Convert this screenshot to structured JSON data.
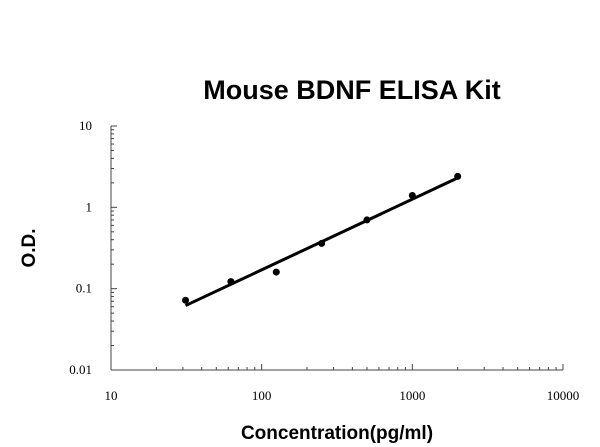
{
  "chart_data": {
    "type": "scatter",
    "title": "Mouse BDNF ELISA Kit",
    "xlabel": "Concentration(pg/ml)",
    "ylabel": "O.D.",
    "x_scale": "log",
    "y_scale": "log",
    "xlim": [
      10,
      10000
    ],
    "ylim": [
      0.01,
      10
    ],
    "x_ticks": [
      {
        "value": 10,
        "label": "10"
      },
      {
        "value": 100,
        "label": "100"
      },
      {
        "value": 1000,
        "label": "1000"
      },
      {
        "value": 10000,
        "label": "10000"
      }
    ],
    "y_ticks": [
      {
        "value": 10,
        "label": "10"
      },
      {
        "value": 1,
        "label": "1"
      },
      {
        "value": 0.1,
        "label": "0.1"
      },
      {
        "value": 0.01,
        "label": "0.01"
      }
    ],
    "grid": false,
    "points": [
      {
        "x": 31.25,
        "y": 0.072
      },
      {
        "x": 62.5,
        "y": 0.122
      },
      {
        "x": 125,
        "y": 0.16
      },
      {
        "x": 250,
        "y": 0.36
      },
      {
        "x": 500,
        "y": 0.7
      },
      {
        "x": 1000,
        "y": 1.4
      },
      {
        "x": 2000,
        "y": 2.4
      }
    ],
    "trendline": {
      "x": [
        31.25,
        2000
      ],
      "y": [
        0.062,
        2.3
      ]
    }
  }
}
